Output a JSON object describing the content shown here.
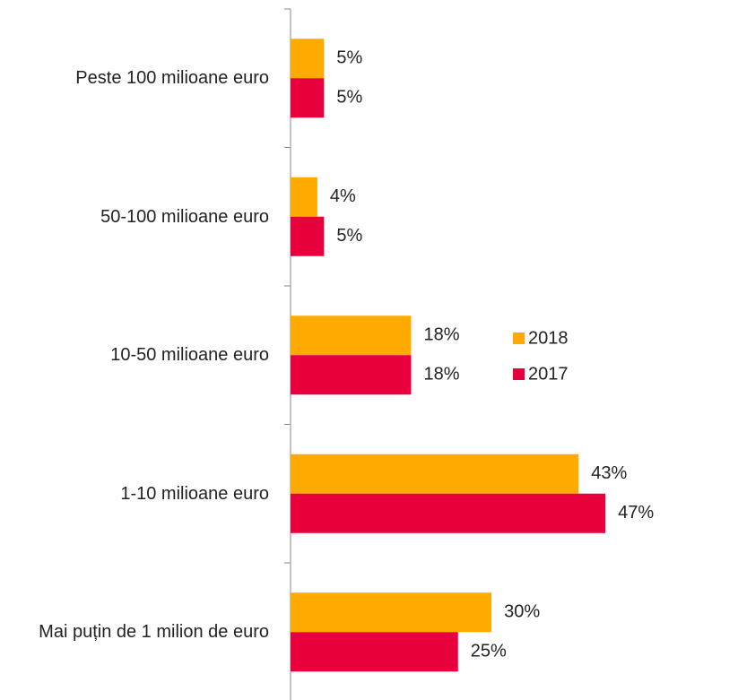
{
  "chart_data": {
    "type": "bar",
    "orientation": "horizontal",
    "categories": [
      "Peste 100 milioane euro",
      "50-100 milioane euro",
      "10-50 milioane euro",
      "1-10 milioane euro",
      "Mai puțin de 1 milion de euro"
    ],
    "series": [
      {
        "name": "2018",
        "color": "#FFAA00",
        "values": [
          5,
          4,
          18,
          43,
          30
        ],
        "value_labels": [
          "5%",
          "4%",
          "18%",
          "43%",
          "30%"
        ]
      },
      {
        "name": "2017",
        "color": "#E8003D",
        "values": [
          5,
          5,
          18,
          47,
          25
        ],
        "value_labels": [
          "5%",
          "5%",
          "18%",
          "47%",
          "25%"
        ]
      }
    ],
    "legend": "right"
  }
}
